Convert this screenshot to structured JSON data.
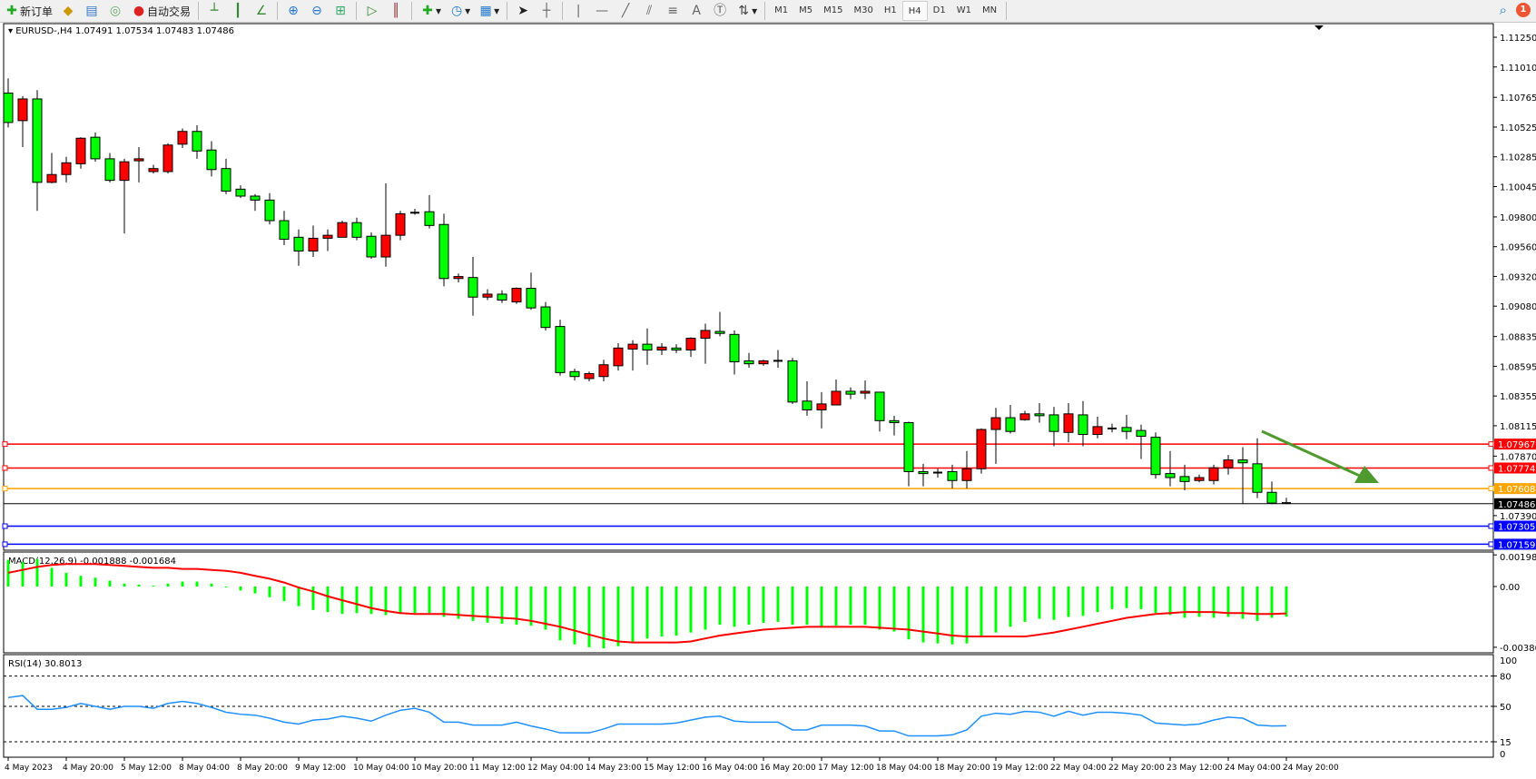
{
  "toolbar": {
    "new_order_label": "新订单",
    "auto_trading_label": "自动交易",
    "icons": [
      "new-order-icon",
      "meta-editor-icon",
      "history-center-icon",
      "signals-icon",
      "auto-trading-icon",
      "bar-chart-icon",
      "candlestick-icon",
      "line-chart-icon",
      "zoom-in-icon",
      "zoom-out-icon",
      "tile-windows-icon",
      "auto-scroll-icon",
      "chart-shift-icon",
      "indicators-icon",
      "periods-icon",
      "templates-icon",
      "cursor-icon",
      "crosshair-icon",
      "vertical-line-icon",
      "horizontal-line-icon",
      "trendline-icon",
      "equidistant-channel-icon",
      "fibonacci-icon",
      "text-icon",
      "text-label-icon",
      "arrows-icon"
    ],
    "text_tool": "A",
    "timeframes": [
      "M1",
      "M5",
      "M15",
      "M30",
      "H1",
      "H4",
      "D1",
      "W1",
      "MN"
    ],
    "active_timeframe": "H4",
    "notification_count": "1"
  },
  "chart": {
    "header": "EURUSD-,H4  1.07491 1.07534 1.07483 1.07486",
    "up_color": "#ff0000",
    "down_color": "#00ff00",
    "price_ticks": [
      "1.11250",
      "1.11010",
      "1.10765",
      "1.10525",
      "1.10285",
      "1.10045",
      "1.09800",
      "1.09560",
      "1.09320",
      "1.09080",
      "1.08835",
      "1.08595",
      "1.08355",
      "1.08115",
      "1.07870",
      "1.07390"
    ],
    "levels": [
      {
        "price": "1.07967",
        "color": "#ff0000"
      },
      {
        "price": "1.07774",
        "color": "#ff0000"
      },
      {
        "price": "1.07608",
        "color": "#ffa500"
      },
      {
        "price": "1.07486",
        "color": "#000000"
      },
      {
        "price": "1.07305",
        "color": "#0000ff"
      },
      {
        "price": "1.07159",
        "color": "#0000ff"
      }
    ],
    "arrow_color": "#4e9a2f",
    "time_labels": [
      "4 May 2023",
      "4 May 20:00",
      "5 May 12:00",
      "8 May 04:00",
      "8 May 20:00",
      "9 May 12:00",
      "10 May 04:00",
      "10 May 20:00",
      "11 May 12:00",
      "12 May 04:00",
      "14 May 23:00",
      "15 May 12:00",
      "16 May 04:00",
      "16 May 20:00",
      "17 May 12:00",
      "18 May 04:00",
      "18 May 20:00",
      "19 May 12:00",
      "22 May 04:00",
      "22 May 20:00",
      "23 May 12:00",
      "24 May 04:00",
      "24 May 20:00"
    ]
  },
  "macd": {
    "label": "MACD(12,26,9) -0.001888 -0.001684",
    "ticks": [
      "0.001982",
      "0.00",
      "-0.003804"
    ],
    "hist_color": "#00ff00",
    "signal_color": "#ff0000"
  },
  "rsi": {
    "label": "RSI(14) 30.8013",
    "ticks": [
      "100",
      "80",
      "50",
      "15",
      "0"
    ],
    "color": "#1e90ff"
  },
  "chart_data": [
    {
      "type": "candlestick",
      "title": "EURUSD-,H4",
      "ylim": [
        1.07159,
        1.1125
      ],
      "ohlc": [
        [
          1.10799,
          1.10918,
          1.10522,
          1.10562
        ],
        [
          1.10577,
          1.10775,
          1.10364,
          1.10752
        ],
        [
          1.10752,
          1.10823,
          1.09849,
          1.10079
        ],
        [
          1.10079,
          1.10316,
          1.10071,
          1.10142
        ],
        [
          1.10142,
          1.10285,
          1.10079,
          1.10237
        ],
        [
          1.10229,
          1.10443,
          1.1019,
          1.10435
        ],
        [
          1.10443,
          1.10482,
          1.10245,
          1.10269
        ],
        [
          1.10269,
          1.10316,
          1.10079,
          1.10095
        ],
        [
          1.10095,
          1.10269,
          1.09667,
          1.10245
        ],
        [
          1.10253,
          1.10364,
          1.10079,
          1.10269
        ],
        [
          1.10166,
          1.10221,
          1.1015,
          1.1019
        ],
        [
          1.10166,
          1.10395,
          1.1015,
          1.1038
        ],
        [
          1.10387,
          1.10514,
          1.10356,
          1.1049
        ],
        [
          1.1049,
          1.1054,
          1.10269,
          1.10332
        ],
        [
          1.1034,
          1.10411,
          1.10126,
          1.10182
        ],
        [
          1.1019,
          1.10269,
          1.09984,
          1.10008
        ],
        [
          1.10024,
          1.10055,
          1.09952,
          1.09968
        ],
        [
          1.09968,
          1.09984,
          1.09849,
          1.09936
        ],
        [
          1.09936,
          1.09992,
          1.09739,
          1.0977
        ],
        [
          1.0977,
          1.09849,
          1.09572,
          1.0962
        ],
        [
          1.09636,
          1.09699,
          1.09406,
          1.09525
        ],
        [
          1.09525,
          1.09731,
          1.09477,
          1.09628
        ],
        [
          1.09628,
          1.09699,
          1.09525,
          1.09652
        ],
        [
          1.09636,
          1.0977,
          1.09636,
          1.09754
        ],
        [
          1.09754,
          1.09794,
          1.09612,
          1.09636
        ],
        [
          1.09644,
          1.09675,
          1.09462,
          1.09477
        ],
        [
          1.09477,
          1.10071,
          1.09398,
          1.09652
        ],
        [
          1.09652,
          1.09849,
          1.09612,
          1.09826
        ],
        [
          1.09834,
          1.09865,
          1.09818,
          1.09834
        ],
        [
          1.09842,
          1.09976,
          1.09707,
          1.09731
        ],
        [
          1.09739,
          1.09826,
          1.0924,
          1.09303
        ],
        [
          1.09303,
          1.09343,
          1.09272,
          1.09319
        ],
        [
          1.09311,
          1.09477,
          1.09003,
          1.09153
        ],
        [
          1.09153,
          1.09216,
          1.09129,
          1.09177
        ],
        [
          1.09177,
          1.09208,
          1.09106,
          1.09129
        ],
        [
          1.09114,
          1.09232,
          1.09098,
          1.09224
        ],
        [
          1.09224,
          1.09351,
          1.0905,
          1.09066
        ],
        [
          1.09074,
          1.09114,
          1.08884,
          1.08908
        ],
        [
          1.08916,
          1.08971,
          1.0852,
          1.08544
        ],
        [
          1.08552,
          1.08575,
          1.0848,
          1.08512
        ],
        [
          1.08496,
          1.08552,
          1.08473,
          1.08536
        ],
        [
          1.08512,
          1.08647,
          1.08473,
          1.08607
        ],
        [
          1.08599,
          1.08781,
          1.0856,
          1.08742
        ],
        [
          1.08734,
          1.08805,
          1.0856,
          1.08773
        ],
        [
          1.08773,
          1.089,
          1.08607,
          1.08726
        ],
        [
          1.08726,
          1.08781,
          1.08686,
          1.0875
        ],
        [
          1.08742,
          1.08773,
          1.08702,
          1.08726
        ],
        [
          1.08726,
          1.08829,
          1.0867,
          1.08821
        ],
        [
          1.08821,
          1.08939,
          1.08615,
          1.08884
        ],
        [
          1.08876,
          1.09034,
          1.08837,
          1.0886
        ],
        [
          1.08852,
          1.08884,
          1.08528,
          1.08631
        ],
        [
          1.08639,
          1.08702,
          1.08583,
          1.08615
        ],
        [
          1.08615,
          1.08647,
          1.08599,
          1.08639
        ],
        [
          1.08639,
          1.08726,
          1.08583,
          1.08639
        ],
        [
          1.08639,
          1.08662,
          1.08291,
          1.08306
        ],
        [
          1.08314,
          1.08473,
          1.08196,
          1.08243
        ],
        [
          1.08243,
          1.08386,
          1.08093,
          1.08291
        ],
        [
          1.08283,
          1.08488,
          1.08283,
          1.08393
        ],
        [
          1.08393,
          1.08425,
          1.0833,
          1.0837
        ],
        [
          1.08378,
          1.0848,
          1.0833,
          1.08393
        ],
        [
          1.08386,
          1.08386,
          1.08069,
          1.08156
        ],
        [
          1.08156,
          1.08196,
          1.08037,
          1.0814
        ],
        [
          1.0814,
          1.08148,
          1.07626,
          1.07745
        ],
        [
          1.07745,
          1.07808,
          1.07626,
          1.07729
        ],
        [
          1.07737,
          1.07768,
          1.07697,
          1.07737
        ],
        [
          1.07745,
          1.078,
          1.0761,
          1.07673
        ],
        [
          1.07673,
          1.07911,
          1.0761,
          1.07768
        ],
        [
          1.07768,
          1.08093,
          1.07729,
          1.08085
        ],
        [
          1.08085,
          1.08259,
          1.07808,
          1.0818
        ],
        [
          1.0818,
          1.08283,
          1.08053,
          1.08069
        ],
        [
          1.08164,
          1.08235,
          1.08156,
          1.08211
        ],
        [
          1.08211,
          1.08298,
          1.0814,
          1.08196
        ],
        [
          1.08203,
          1.08267,
          1.0795,
          1.08069
        ],
        [
          1.08061,
          1.08298,
          1.07982,
          1.08211
        ],
        [
          1.08203,
          1.08314,
          1.0795,
          1.08045
        ],
        [
          1.08045,
          1.08188,
          1.08014,
          1.08108
        ],
        [
          1.08093,
          1.08132,
          1.08061,
          1.08093
        ],
        [
          1.08101,
          1.08203,
          1.08006,
          1.08069
        ],
        [
          1.08077,
          1.08124,
          1.07847,
          1.0803
        ],
        [
          1.08022,
          1.08061,
          1.07689,
          1.07721
        ],
        [
          1.07729,
          1.07911,
          1.07626,
          1.07697
        ],
        [
          1.07705,
          1.078,
          1.07594,
          1.07665
        ],
        [
          1.07673,
          1.07721,
          1.07658,
          1.07697
        ],
        [
          1.07673,
          1.078,
          1.07642,
          1.07776
        ],
        [
          1.07776,
          1.07879,
          1.07721,
          1.07839
        ],
        [
          1.07839,
          1.07942,
          1.07483,
          1.07816
        ],
        [
          1.07808,
          1.08014,
          1.07531,
          1.07578
        ],
        [
          1.07578,
          1.07665,
          1.07483,
          1.07491
        ],
        [
          1.07491,
          1.07534,
          1.07483,
          1.07486
        ]
      ]
    },
    {
      "type": "bar",
      "title": "MACD(12,26,9)",
      "ylim": [
        -0.003804,
        0.001982
      ],
      "series": [
        {
          "name": "MACD",
          "type": "bar",
          "values": [
            0.00166,
            0.00153,
            0.00172,
            0.00117,
            0.00086,
            0.00067,
            0.00055,
            0.00037,
            0.00018,
            0.00012,
            6e-05,
            0.00018,
            0.00031,
            0.00031,
            0.00018,
            0,
            -0.00025,
            -0.00043,
            -0.00067,
            -0.00092,
            -0.00123,
            -0.00147,
            -0.0016,
            -0.00172,
            -0.00166,
            -0.00172,
            -0.00178,
            -0.00172,
            -0.00166,
            -0.00166,
            -0.0019,
            -0.00202,
            -0.00215,
            -0.00227,
            -0.00233,
            -0.00239,
            -0.00245,
            -0.0027,
            -0.00337,
            -0.00362,
            -0.0038,
            -0.00387,
            -0.00374,
            -0.0035,
            -0.00325,
            -0.00313,
            -0.00307,
            -0.00288,
            -0.0027,
            -0.00239,
            -0.00252,
            -0.00239,
            -0.00227,
            -0.00221,
            -0.00239,
            -0.00239,
            -0.00252,
            -0.00245,
            -0.00239,
            -0.00239,
            -0.0027,
            -0.00282,
            -0.00331,
            -0.0035,
            -0.00356,
            -0.00362,
            -0.00356,
            -0.00313,
            -0.00288,
            -0.00252,
            -0.00221,
            -0.00202,
            -0.00209,
            -0.0019,
            -0.00184,
            -0.0016,
            -0.00141,
            -0.00135,
            -0.00141,
            -0.00166,
            -0.00178,
            -0.00196,
            -0.0019,
            -0.00196,
            -0.0019,
            -0.00202,
            -0.00215,
            -0.00196,
            -0.001888
          ]
        },
        {
          "name": "Signal",
          "type": "line",
          "values": [
            0.00086,
            0.00104,
            0.00123,
            0.00135,
            0.00141,
            0.00141,
            0.00141,
            0.00135,
            0.00129,
            0.00123,
            0.00117,
            0.00117,
            0.0011,
            0.0011,
            0.00104,
            0.00098,
            0.00086,
            0.00067,
            0.00049,
            0.00025,
            -6e-05,
            -0.00031,
            -0.00061,
            -0.00086,
            -0.0011,
            -0.00135,
            -0.00153,
            -0.00166,
            -0.00172,
            -0.00172,
            -0.00172,
            -0.00178,
            -0.00184,
            -0.0019,
            -0.00196,
            -0.00202,
            -0.00215,
            -0.00233,
            -0.00252,
            -0.00276,
            -0.00301,
            -0.00325,
            -0.00344,
            -0.0035,
            -0.0035,
            -0.0035,
            -0.0035,
            -0.00344,
            -0.00325,
            -0.00307,
            -0.00294,
            -0.00282,
            -0.0027,
            -0.00264,
            -0.00258,
            -0.00252,
            -0.00252,
            -0.00252,
            -0.00252,
            -0.00252,
            -0.00258,
            -0.00264,
            -0.0027,
            -0.00282,
            -0.00294,
            -0.00307,
            -0.00313,
            -0.00313,
            -0.00313,
            -0.00313,
            -0.00313,
            -0.00301,
            -0.00288,
            -0.0027,
            -0.00252,
            -0.00233,
            -0.00215,
            -0.00196,
            -0.00184,
            -0.00172,
            -0.00166,
            -0.0016,
            -0.0016,
            -0.0016,
            -0.00166,
            -0.00166,
            -0.00172,
            -0.00172,
            -0.001684
          ]
        }
      ]
    },
    {
      "type": "line",
      "title": "RSI(14)",
      "ylim": [
        0,
        100
      ],
      "levels": [
        80,
        50,
        15
      ],
      "values": [
        58.7,
        60.7,
        47.1,
        47.1,
        49.0,
        52.9,
        50,
        47.1,
        50,
        50,
        48.1,
        52.9,
        54.9,
        52.9,
        49.0,
        44.2,
        42.2,
        41.3,
        38.3,
        34.4,
        32.5,
        36.4,
        37.4,
        40.3,
        38.3,
        35.4,
        41.3,
        46.1,
        48.1,
        44.2,
        34.4,
        34.4,
        31.5,
        31.5,
        31.5,
        34.4,
        30.6,
        27.6,
        23.8,
        23.8,
        23.8,
        27.6,
        32.5,
        32.5,
        32.5,
        32.5,
        33.5,
        36.4,
        39.3,
        40.3,
        35.4,
        34.4,
        34.4,
        34.4,
        26.7,
        26.7,
        31.5,
        31.5,
        31.5,
        30.6,
        25.7,
        25.7,
        20.8,
        20.8,
        20.8,
        21.8,
        26.7,
        40.3,
        43.2,
        42.2,
        45.1,
        44.2,
        40.3,
        45.1,
        41.3,
        44.2,
        44.2,
        43.2,
        41.3,
        33.5,
        32.5,
        31.5,
        32.5,
        36.4,
        39.3,
        38.3,
        31.5,
        30.6,
        30.8013
      ]
    }
  ]
}
